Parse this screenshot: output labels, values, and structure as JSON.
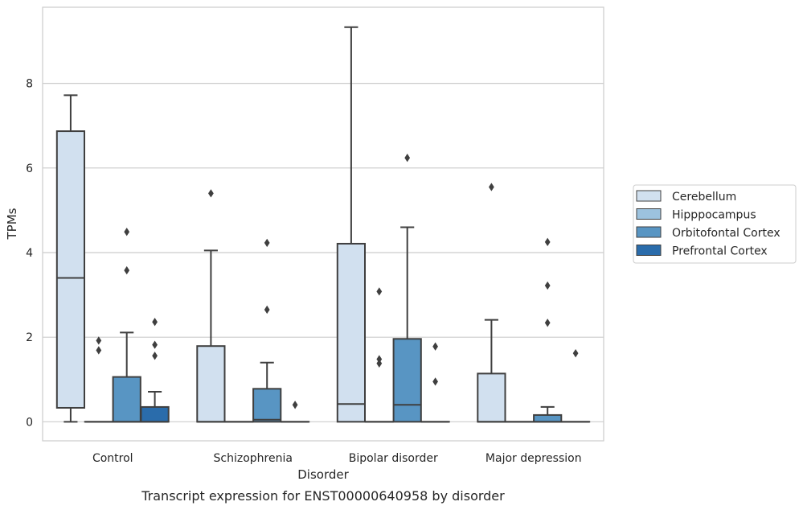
{
  "caption": "Transcript expression for ENST00000640958 by disorder",
  "chart_data": {
    "type": "box",
    "xlabel": "Disorder",
    "ylabel": "TPMs",
    "ylim": [
      -0.45,
      9.8
    ],
    "yticks": [
      0,
      2,
      4,
      6,
      8
    ],
    "categories": [
      "Control",
      "Schizophrenia",
      "Bipolar disorder",
      "Major depression"
    ],
    "grid": "horizontal",
    "legend_position": "right",
    "series": [
      {
        "name": "Cerebellum",
        "color": "#d1e0ef",
        "boxes": [
          {
            "category": "Control",
            "q1": 0.33,
            "median": 3.4,
            "q3": 6.87,
            "whisker_low": 0,
            "whisker_high": 7.72,
            "outliers": []
          },
          {
            "category": "Schizophrenia",
            "q1": 0,
            "median": 0,
            "q3": 1.79,
            "whisker_low": 0,
            "whisker_high": 4.05,
            "outliers": [
              5.4
            ]
          },
          {
            "category": "Bipolar disorder",
            "q1": 0,
            "median": 0.42,
            "q3": 4.21,
            "whisker_low": 0,
            "whisker_high": 9.33,
            "outliers": []
          },
          {
            "category": "Major depression",
            "q1": 0,
            "median": 0,
            "q3": 1.14,
            "whisker_low": 0,
            "whisker_high": 2.41,
            "outliers": [
              5.55
            ]
          }
        ]
      },
      {
        "name": "Hipppocampus",
        "color": "#9cc2de",
        "boxes": [
          {
            "category": "Control",
            "q1": 0,
            "median": 0,
            "q3": 0,
            "whisker_low": 0,
            "whisker_high": 0,
            "outliers": [
              1.92,
              1.69
            ]
          },
          {
            "category": "Schizophrenia",
            "q1": 0,
            "median": 0,
            "q3": 0,
            "whisker_low": 0,
            "whisker_high": 0,
            "outliers": []
          },
          {
            "category": "Bipolar disorder",
            "q1": 0,
            "median": 0,
            "q3": 0,
            "whisker_low": 0,
            "whisker_high": 0,
            "outliers": [
              3.08,
              1.48,
              1.38
            ]
          },
          {
            "category": "Major depression",
            "q1": 0,
            "median": 0,
            "q3": 0,
            "whisker_low": 0,
            "whisker_high": 0,
            "outliers": []
          }
        ]
      },
      {
        "name": "Orbitofontal Cortex",
        "color": "#5895c3",
        "boxes": [
          {
            "category": "Control",
            "q1": 0,
            "median": 0,
            "q3": 1.06,
            "whisker_low": 0,
            "whisker_high": 2.11,
            "outliers": [
              4.49,
              3.58
            ]
          },
          {
            "category": "Schizophrenia",
            "q1": 0,
            "median": 0.05,
            "q3": 0.78,
            "whisker_low": 0,
            "whisker_high": 1.4,
            "outliers": [
              4.23,
              2.65
            ]
          },
          {
            "category": "Bipolar disorder",
            "q1": 0,
            "median": 0.4,
            "q3": 1.96,
            "whisker_low": 0,
            "whisker_high": 4.6,
            "outliers": [
              6.24
            ]
          },
          {
            "category": "Major depression",
            "q1": 0,
            "median": 0,
            "q3": 0.16,
            "whisker_low": 0,
            "whisker_high": 0.35,
            "outliers": [
              4.25,
              3.22,
              2.34
            ]
          }
        ]
      },
      {
        "name": "Prefrontal Cortex",
        "color": "#2a6cab",
        "boxes": [
          {
            "category": "Control",
            "q1": 0,
            "median": 0,
            "q3": 0.35,
            "whisker_low": 0,
            "whisker_high": 0.71,
            "outliers": [
              2.36,
              1.82,
              1.56
            ]
          },
          {
            "category": "Schizophrenia",
            "q1": 0,
            "median": 0,
            "q3": 0,
            "whisker_low": 0,
            "whisker_high": 0,
            "outliers": [
              0.4
            ]
          },
          {
            "category": "Bipolar disorder",
            "q1": 0,
            "median": 0,
            "q3": 0,
            "whisker_low": 0,
            "whisker_high": 0,
            "outliers": [
              1.78,
              0.95
            ]
          },
          {
            "category": "Major depression",
            "q1": 0,
            "median": 0,
            "q3": 0,
            "whisker_low": 0,
            "whisker_high": 0,
            "outliers": [
              1.62
            ]
          }
        ]
      }
    ]
  }
}
